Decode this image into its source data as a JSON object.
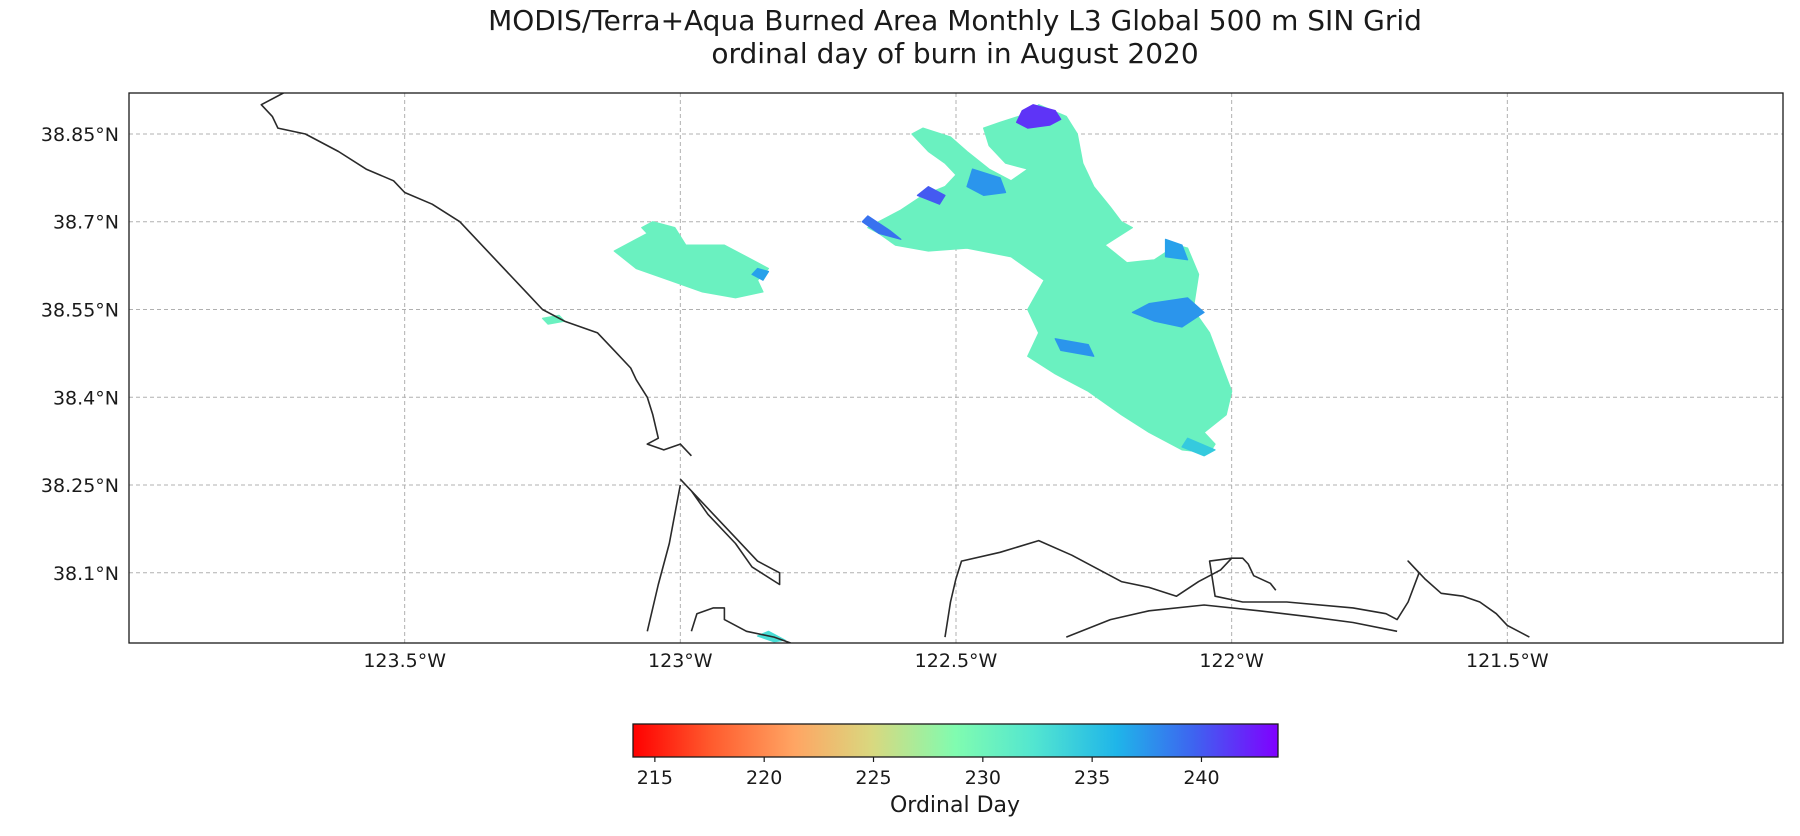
{
  "title_line1": "MODIS/Terra+Aqua Burned Area Monthly L3 Global 500 m SIN Grid",
  "title_line2": "ordinal day of burn in August 2020",
  "map": {
    "lon_range": [
      -124.0,
      -121.0
    ],
    "lat_range": [
      37.98,
      38.92
    ],
    "lon_ticks": [
      {
        "value": -123.5,
        "label": "123.5°W"
      },
      {
        "value": -123.0,
        "label": "123°W"
      },
      {
        "value": -122.5,
        "label": "122.5°W"
      },
      {
        "value": -122.0,
        "label": "122°W"
      },
      {
        "value": -121.5,
        "label": "121.5°W"
      }
    ],
    "lat_ticks": [
      {
        "value": 38.85,
        "label": "38.85°N"
      },
      {
        "value": 38.7,
        "label": "38.7°N"
      },
      {
        "value": 38.55,
        "label": "38.55°N"
      },
      {
        "value": 38.4,
        "label": "38.4°N"
      },
      {
        "value": 38.25,
        "label": "38.25°N"
      },
      {
        "value": 38.1,
        "label": "38.1°N"
      }
    ],
    "grid": true,
    "coastline_color": "#2a2a2a",
    "burn_areas": [
      {
        "day": 230.5,
        "points": [
          [
            -122.84,
            38.62
          ],
          [
            -122.88,
            38.64
          ],
          [
            -122.92,
            38.66
          ],
          [
            -122.99,
            38.66
          ],
          [
            -123.01,
            38.69
          ],
          [
            -123.05,
            38.7
          ],
          [
            -123.07,
            38.69
          ],
          [
            -123.06,
            38.68
          ],
          [
            -123.08,
            38.67
          ],
          [
            -123.12,
            38.65
          ],
          [
            -123.08,
            38.62
          ],
          [
            -123.02,
            38.6
          ],
          [
            -122.96,
            38.58
          ],
          [
            -122.9,
            38.57
          ],
          [
            -122.85,
            38.58
          ],
          [
            -122.86,
            38.6
          ]
        ]
      },
      {
        "day": 237.0,
        "points": [
          [
            -122.86,
            38.62
          ],
          [
            -122.84,
            38.615
          ],
          [
            -122.85,
            38.6
          ],
          [
            -122.87,
            38.61
          ]
        ]
      },
      {
        "day": 230.5,
        "points": [
          [
            -123.25,
            38.535
          ],
          [
            -123.22,
            38.54
          ],
          [
            -123.21,
            38.53
          ],
          [
            -123.24,
            38.525
          ]
        ]
      },
      {
        "day": 230.5,
        "points": [
          [
            -122.64,
            38.68
          ],
          [
            -122.61,
            38.66
          ],
          [
            -122.55,
            38.65
          ],
          [
            -122.48,
            38.655
          ],
          [
            -122.4,
            38.64
          ],
          [
            -122.34,
            38.6
          ],
          [
            -122.37,
            38.55
          ],
          [
            -122.35,
            38.51
          ],
          [
            -122.37,
            38.47
          ],
          [
            -122.32,
            38.44
          ],
          [
            -122.26,
            38.41
          ],
          [
            -122.2,
            38.37
          ],
          [
            -122.15,
            38.34
          ],
          [
            -122.09,
            38.31
          ],
          [
            -122.04,
            38.305
          ],
          [
            -122.03,
            38.32
          ],
          [
            -122.05,
            38.34
          ],
          [
            -122.01,
            38.37
          ],
          [
            -122.0,
            38.41
          ],
          [
            -122.02,
            38.46
          ],
          [
            -122.04,
            38.51
          ],
          [
            -122.07,
            38.55
          ],
          [
            -122.06,
            38.61
          ],
          [
            -122.08,
            38.655
          ],
          [
            -122.1,
            38.66
          ],
          [
            -122.14,
            38.635
          ],
          [
            -122.19,
            38.63
          ],
          [
            -122.21,
            38.645
          ],
          [
            -122.23,
            38.66
          ],
          [
            -122.18,
            38.69
          ],
          [
            -122.2,
            38.7
          ],
          [
            -122.22,
            38.725
          ],
          [
            -122.25,
            38.76
          ],
          [
            -122.27,
            38.8
          ],
          [
            -122.28,
            38.85
          ],
          [
            -122.3,
            38.88
          ],
          [
            -122.35,
            38.9
          ],
          [
            -122.37,
            38.885
          ],
          [
            -122.42,
            38.87
          ],
          [
            -122.45,
            38.86
          ],
          [
            -122.44,
            38.83
          ],
          [
            -122.41,
            38.8
          ],
          [
            -122.37,
            38.79
          ],
          [
            -122.4,
            38.77
          ],
          [
            -122.44,
            38.79
          ],
          [
            -122.48,
            38.82
          ],
          [
            -122.51,
            38.845
          ],
          [
            -122.56,
            38.86
          ],
          [
            -122.58,
            38.85
          ],
          [
            -122.55,
            38.82
          ],
          [
            -122.52,
            38.8
          ],
          [
            -122.5,
            38.78
          ],
          [
            -122.52,
            38.76
          ],
          [
            -122.56,
            38.745
          ],
          [
            -122.6,
            38.72
          ],
          [
            -122.64,
            38.7
          ],
          [
            -122.66,
            38.69
          ]
        ]
      },
      {
        "day": 241.5,
        "points": [
          [
            -122.36,
            38.9
          ],
          [
            -122.32,
            38.89
          ],
          [
            -122.31,
            38.875
          ],
          [
            -122.33,
            38.865
          ],
          [
            -122.37,
            38.86
          ],
          [
            -122.39,
            38.87
          ],
          [
            -122.38,
            38.89
          ]
        ]
      },
      {
        "day": 237.5,
        "points": [
          [
            -122.47,
            38.79
          ],
          [
            -122.42,
            38.775
          ],
          [
            -122.41,
            38.75
          ],
          [
            -122.45,
            38.745
          ],
          [
            -122.48,
            38.76
          ]
        ]
      },
      {
        "day": 239.0,
        "points": [
          [
            -122.66,
            38.71
          ],
          [
            -122.62,
            38.685
          ],
          [
            -122.6,
            38.67
          ],
          [
            -122.64,
            38.68
          ],
          [
            -122.67,
            38.7
          ]
        ]
      },
      {
        "day": 240.0,
        "points": [
          [
            -122.55,
            38.76
          ],
          [
            -122.52,
            38.745
          ],
          [
            -122.53,
            38.73
          ],
          [
            -122.57,
            38.745
          ]
        ]
      },
      {
        "day": 237.5,
        "points": [
          [
            -122.15,
            38.56
          ],
          [
            -122.08,
            38.57
          ],
          [
            -122.05,
            38.545
          ],
          [
            -122.09,
            38.52
          ],
          [
            -122.14,
            38.53
          ],
          [
            -122.18,
            38.545
          ]
        ]
      },
      {
        "day": 237.0,
        "points": [
          [
            -122.12,
            38.67
          ],
          [
            -122.09,
            38.66
          ],
          [
            -122.08,
            38.635
          ],
          [
            -122.12,
            38.64
          ]
        ]
      },
      {
        "day": 237.5,
        "points": [
          [
            -122.32,
            38.5
          ],
          [
            -122.26,
            38.49
          ],
          [
            -122.25,
            38.47
          ],
          [
            -122.31,
            38.48
          ]
        ]
      },
      {
        "day": 234.5,
        "points": [
          [
            -122.08,
            38.33
          ],
          [
            -122.03,
            38.31
          ],
          [
            -122.05,
            38.3
          ],
          [
            -122.09,
            38.315
          ]
        ]
      },
      {
        "day": 233.0,
        "points": [
          [
            -122.84,
            38.0
          ],
          [
            -122.81,
            37.985
          ],
          [
            -122.83,
            37.982
          ],
          [
            -122.86,
            37.992
          ]
        ]
      }
    ],
    "coastlines": [
      [
        [
          -123.72,
          38.92
        ],
        [
          -123.76,
          38.9
        ],
        [
          -123.74,
          38.88
        ],
        [
          -123.73,
          38.86
        ],
        [
          -123.68,
          38.85
        ],
        [
          -123.62,
          38.82
        ],
        [
          -123.57,
          38.79
        ],
        [
          -123.52,
          38.77
        ],
        [
          -123.5,
          38.75
        ],
        [
          -123.45,
          38.73
        ],
        [
          -123.4,
          38.7
        ],
        [
          -123.33,
          38.63
        ],
        [
          -123.28,
          38.58
        ],
        [
          -123.25,
          38.55
        ],
        [
          -123.21,
          38.53
        ],
        [
          -123.15,
          38.51
        ],
        [
          -123.12,
          38.48
        ],
        [
          -123.09,
          38.45
        ],
        [
          -123.08,
          38.43
        ],
        [
          -123.06,
          38.4
        ],
        [
          -123.05,
          38.37
        ],
        [
          -123.04,
          38.33
        ],
        [
          -123.06,
          38.32
        ],
        [
          -123.03,
          38.31
        ],
        [
          -123.0,
          38.32
        ],
        [
          -122.98,
          38.3
        ]
      ],
      [
        [
          -123.0,
          38.26
        ],
        [
          -122.98,
          38.24
        ],
        [
          -122.94,
          38.2
        ],
        [
          -122.9,
          38.16
        ],
        [
          -122.86,
          38.12
        ],
        [
          -122.82,
          38.1
        ],
        [
          -122.82,
          38.08
        ],
        [
          -122.87,
          38.11
        ],
        [
          -122.9,
          38.15
        ],
        [
          -122.95,
          38.2
        ],
        [
          -122.98,
          38.24
        ]
      ],
      [
        [
          -123.0,
          38.25
        ],
        [
          -123.02,
          38.15
        ],
        [
          -123.04,
          38.08
        ],
        [
          -123.06,
          38.0
        ]
      ],
      [
        [
          -122.98,
          38.0
        ],
        [
          -122.97,
          38.03
        ],
        [
          -122.94,
          38.04
        ],
        [
          -122.92,
          38.04
        ],
        [
          -122.92,
          38.02
        ],
        [
          -122.88,
          38.0
        ],
        [
          -122.83,
          37.99
        ],
        [
          -122.8,
          37.98
        ]
      ],
      [
        [
          -122.52,
          37.99
        ],
        [
          -122.51,
          38.05
        ],
        [
          -122.5,
          38.09
        ],
        [
          -122.49,
          38.12
        ],
        [
          -122.42,
          38.135
        ],
        [
          -122.35,
          38.155
        ],
        [
          -122.29,
          38.13
        ],
        [
          -122.2,
          38.085
        ],
        [
          -122.15,
          38.075
        ],
        [
          -122.1,
          38.06
        ],
        [
          -122.06,
          38.085
        ],
        [
          -122.02,
          38.105
        ],
        [
          -122.0,
          38.125
        ],
        [
          -121.98,
          38.125
        ],
        [
          -121.97,
          38.115
        ],
        [
          -121.96,
          38.095
        ],
        [
          -121.93,
          38.082
        ],
        [
          -121.92,
          38.07
        ]
      ],
      [
        [
          -122.0,
          38.125
        ],
        [
          -122.04,
          38.12
        ],
        [
          -122.03,
          38.06
        ],
        [
          -121.98,
          38.05
        ],
        [
          -121.9,
          38.05
        ],
        [
          -121.78,
          38.04
        ],
        [
          -121.72,
          38.03
        ],
        [
          -121.7,
          38.02
        ],
        [
          -121.68,
          38.05
        ],
        [
          -121.66,
          38.1
        ],
        [
          -121.68,
          38.12
        ],
        [
          -121.65,
          38.09
        ],
        [
          -121.62,
          38.065
        ],
        [
          -121.58,
          38.06
        ],
        [
          -121.55,
          38.05
        ],
        [
          -121.52,
          38.03
        ],
        [
          -121.5,
          38.01
        ],
        [
          -121.46,
          37.99
        ]
      ],
      [
        [
          -122.3,
          37.99
        ],
        [
          -122.22,
          38.02
        ],
        [
          -122.15,
          38.035
        ],
        [
          -122.05,
          38.045
        ],
        [
          -121.95,
          38.035
        ],
        [
          -121.86,
          38.025
        ],
        [
          -121.78,
          38.015
        ],
        [
          -121.7,
          38.0
        ]
      ]
    ]
  },
  "colorbar": {
    "min": 214.0,
    "max": 243.5,
    "ticks": [
      {
        "value": 215,
        "label": "215"
      },
      {
        "value": 220,
        "label": "220"
      },
      {
        "value": 225,
        "label": "225"
      },
      {
        "value": 230,
        "label": "230"
      },
      {
        "value": 235,
        "label": "235"
      },
      {
        "value": 240,
        "label": "240"
      }
    ],
    "label": "Ordinal Day",
    "colormap": "rainbow_r"
  }
}
